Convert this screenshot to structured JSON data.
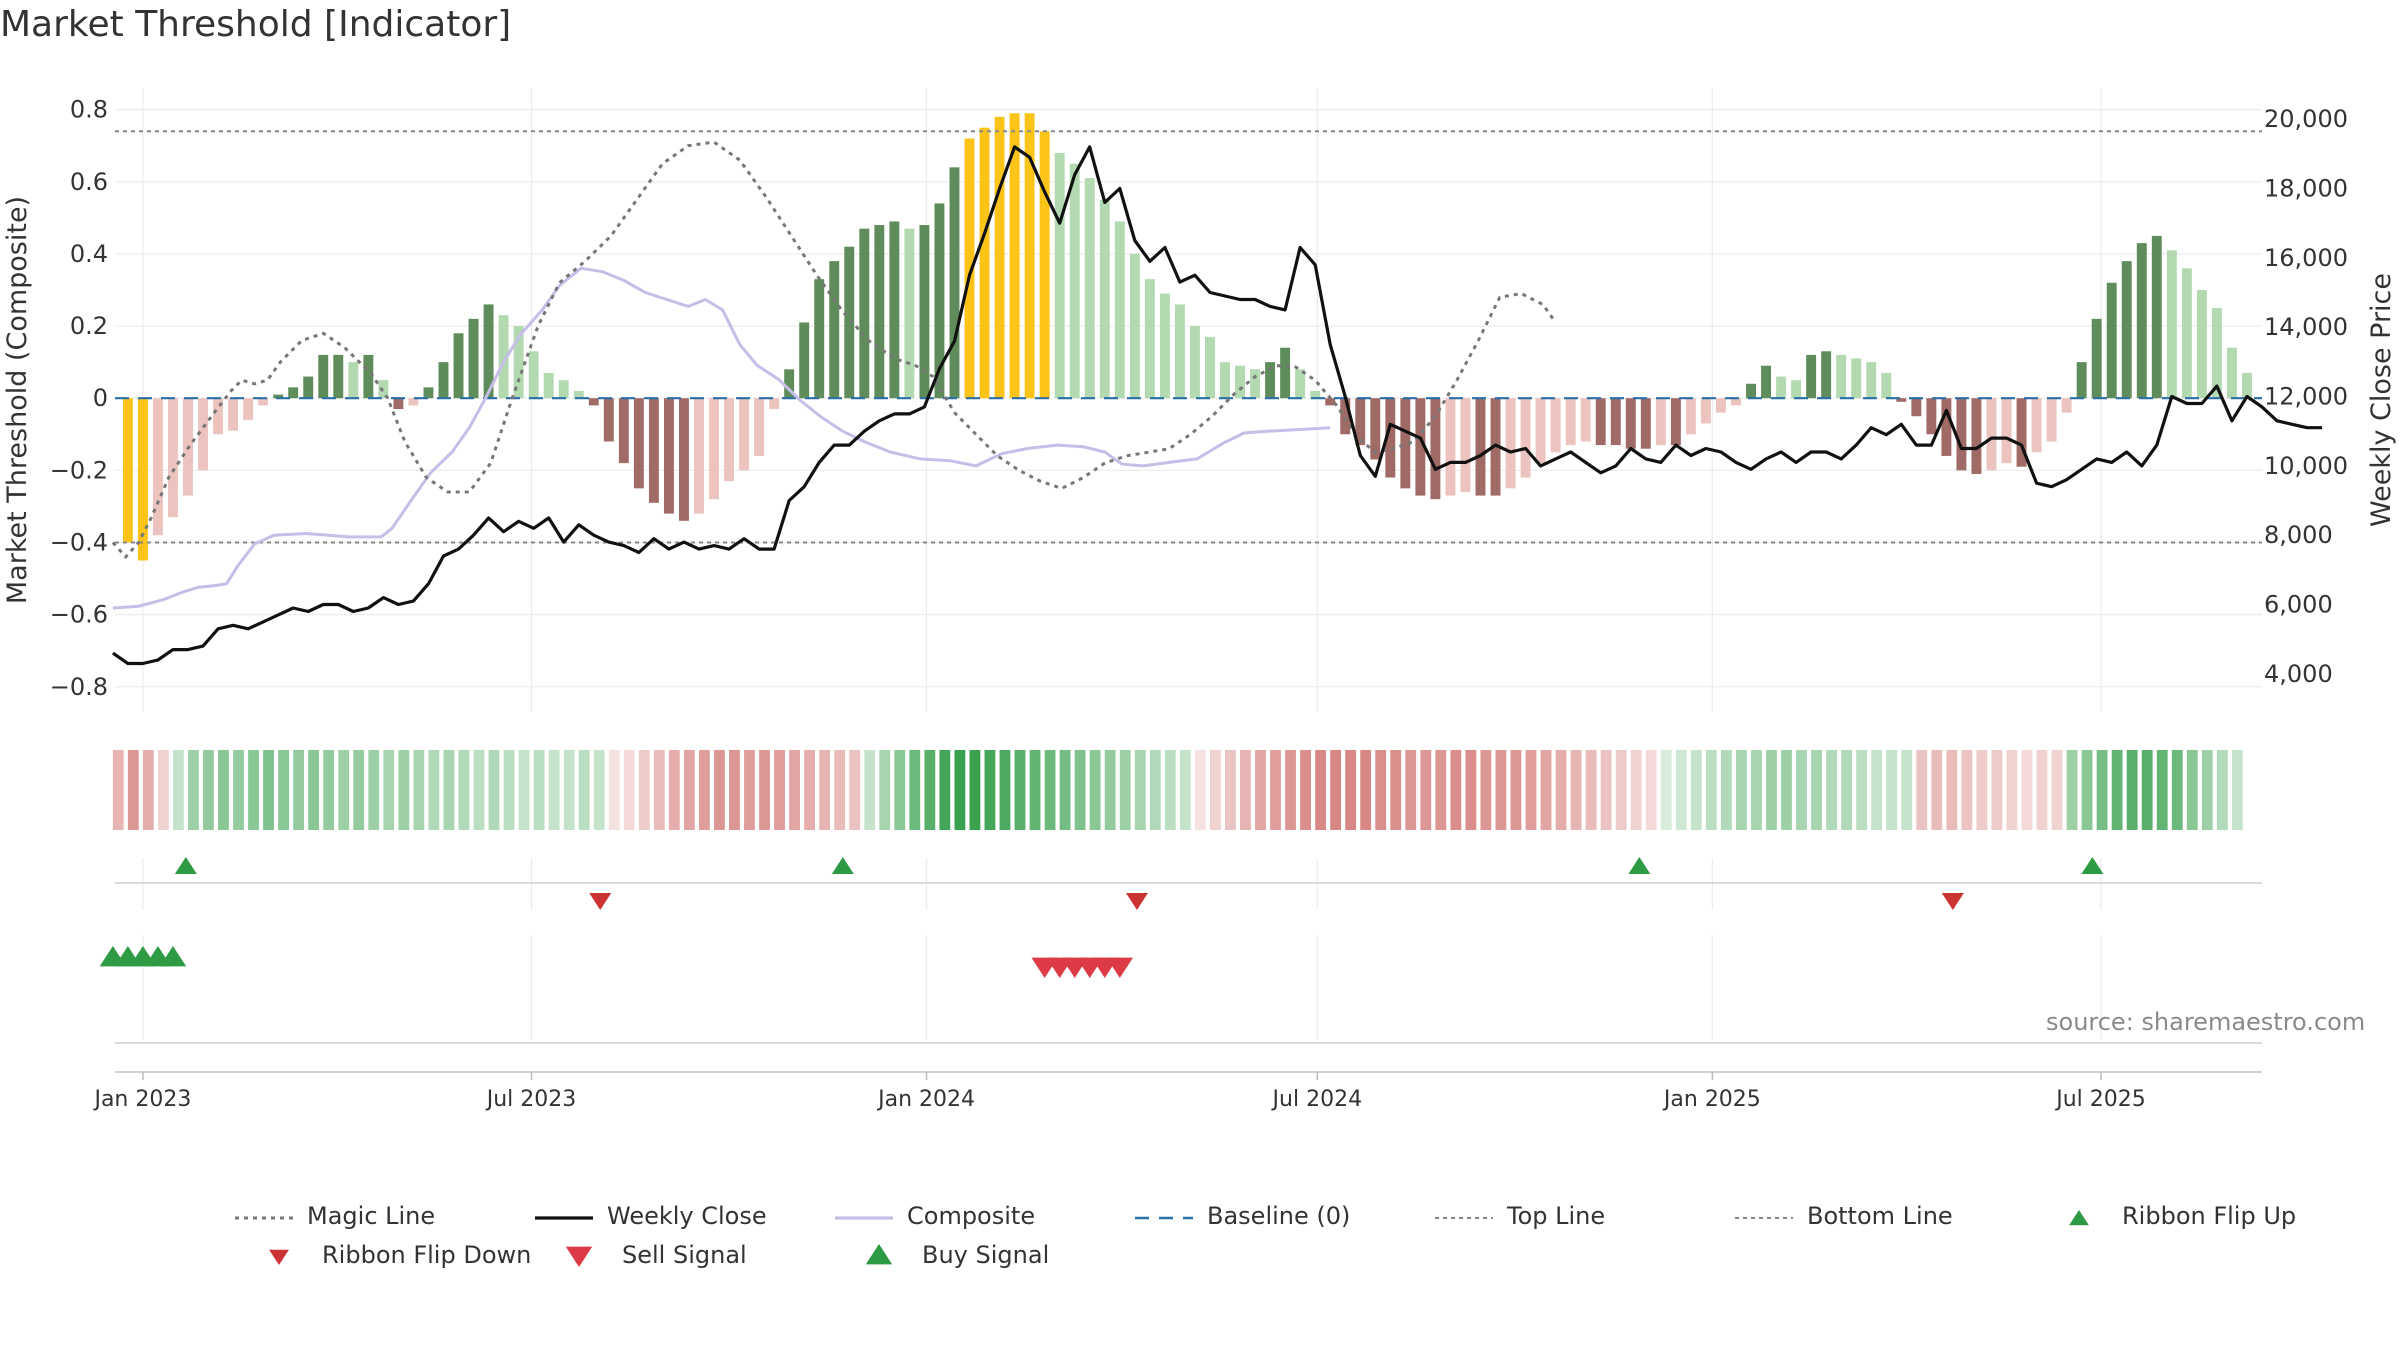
{
  "title": "Market Threshold [Indicator]",
  "source": "source: sharemaestro.com",
  "colors": {
    "bull_dark": "#5e8c5a",
    "bull_light": "#b2d9b0",
    "bear_dark": "#a06a66",
    "bear_light": "#ecc3bf",
    "extreme": "#fcc419",
    "weekly_close": "#111111",
    "composite": "#c6bde8",
    "magic": "#777777",
    "baseline": "#2b6fa8",
    "ribbon_green": "#3aa14f",
    "ribbon_red": "#cd6a66",
    "buy": "#2f9a44",
    "sell": "#dc3b45"
  },
  "chart_data": {
    "type": "bar",
    "title": "Market Threshold [Indicator]",
    "y_left_label": "Market Threshold (Composite)",
    "y_right_label": "Weekly Close Price",
    "y_left_ticks": [
      "0.8",
      "0.6",
      "0.4",
      "0.2",
      "0",
      "−0.2",
      "−0.4",
      "−0.6",
      "−0.8"
    ],
    "y_left_tick_values": [
      0.8,
      0.6,
      0.4,
      0.2,
      0,
      -0.2,
      -0.4,
      -0.6,
      -0.8
    ],
    "y_right_ticks": [
      "20,000",
      "18,000",
      "16,000",
      "14,000",
      "12,000",
      "10,000",
      "8,000",
      "6,000",
      "4,000"
    ],
    "y_right_tick_values": [
      20000,
      18000,
      16000,
      14000,
      12000,
      10000,
      8000,
      6000,
      4000
    ],
    "ylim_left": [
      -0.87,
      0.86
    ],
    "ylim_right": [
      2900,
      20900
    ],
    "x_ticks": [
      "Jan 2023",
      "Jul 2023",
      "Jan 2024",
      "Jul 2024",
      "Jan 2025",
      "Jul 2025"
    ],
    "x_tick_dates": [
      "2023-01-01",
      "2023-07-01",
      "2024-01-01",
      "2024-07-01",
      "2025-01-01",
      "2025-07-01"
    ],
    "x_range": [
      "2022-12-19",
      "2025-09-14"
    ],
    "top_line": 0.74,
    "bottom_line": -0.4,
    "grid": true,
    "legend_position": "bottom",
    "composite_start": "2022-12-25",
    "composite_step_days": 7,
    "composite": [
      -0.4,
      -0.45,
      -0.38,
      -0.33,
      -0.27,
      -0.2,
      -0.1,
      -0.09,
      -0.06,
      -0.02,
      0.01,
      0.03,
      0.06,
      0.12,
      0.12,
      0.1,
      0.12,
      0.05,
      -0.03,
      -0.02,
      0.03,
      0.1,
      0.18,
      0.22,
      0.26,
      0.23,
      0.2,
      0.13,
      0.07,
      0.05,
      0.02,
      -0.02,
      -0.12,
      -0.18,
      -0.25,
      -0.29,
      -0.32,
      -0.34,
      -0.32,
      -0.28,
      -0.23,
      -0.2,
      -0.16,
      -0.03,
      0.08,
      0.21,
      0.33,
      0.38,
      0.42,
      0.47,
      0.48,
      0.49,
      0.47,
      0.48,
      0.54,
      0.64,
      0.72,
      0.75,
      0.78,
      0.79,
      0.79,
      0.74,
      0.68,
      0.65,
      0.61,
      0.55,
      0.49,
      0.4,
      0.33,
      0.29,
      0.26,
      0.2,
      0.17,
      0.1,
      0.09,
      0.08,
      0.1,
      0.14,
      0.08,
      0.02,
      -0.02,
      -0.1,
      -0.13,
      -0.17,
      -0.22,
      -0.25,
      -0.27,
      -0.28,
      -0.27,
      -0.26,
      -0.27,
      -0.27,
      -0.25,
      -0.22,
      -0.18,
      -0.15,
      -0.13,
      -0.12,
      -0.13,
      -0.13,
      -0.14,
      -0.14,
      -0.13,
      -0.13,
      -0.1,
      -0.07,
      -0.04,
      -0.02,
      0.04,
      0.09,
      0.06,
      0.05,
      0.12,
      0.13,
      0.12,
      0.11,
      0.1,
      0.07,
      -0.01,
      -0.05,
      -0.1,
      -0.16,
      -0.2,
      -0.21,
      -0.2,
      -0.18,
      -0.19,
      -0.15,
      -0.12,
      -0.04,
      0.1,
      0.22,
      0.32,
      0.38,
      0.43,
      0.45,
      0.41,
      0.36,
      0.3,
      0.25,
      0.14,
      0.07
    ],
    "weekly_close": [
      4600,
      4300,
      4300,
      4400,
      4700,
      4700,
      4800,
      5300,
      5400,
      5300,
      5500,
      5700,
      5900,
      5800,
      6000,
      6000,
      5800,
      5900,
      6200,
      6000,
      6100,
      6600,
      7400,
      7600,
      8000,
      8500,
      8100,
      8400,
      8200,
      8500,
      7800,
      8300,
      8000,
      7800,
      7700,
      7500,
      7900,
      7600,
      7800,
      7600,
      7700,
      7600,
      7900,
      7600,
      7600,
      9000,
      9400,
      10100,
      10600,
      10600,
      11000,
      11300,
      11500,
      11500,
      11700,
      12800,
      13600,
      15500,
      16700,
      18000,
      19200,
      18900,
      17900,
      17000,
      18400,
      19200,
      17600,
      18000,
      16500,
      15900,
      16300,
      15300,
      15500,
      15000,
      14900,
      14800,
      14800,
      14600,
      14500,
      16300,
      15800,
      13500,
      12000,
      10300,
      9700,
      11200,
      11000,
      10800,
      9900,
      10100,
      10100,
      10300,
      10600,
      10400,
      10500,
      10000,
      10200,
      10400,
      10100,
      9800,
      10000,
      10500,
      10200,
      10100,
      10600,
      10300,
      10500,
      10400,
      10100,
      9900,
      10200,
      10400,
      10100,
      10400,
      10400,
      10200,
      10600,
      11100,
      10900,
      11200,
      10600,
      10600,
      11600,
      10500,
      10500,
      10800,
      10800,
      10600,
      9500,
      9400,
      9600,
      9900,
      10200,
      10100,
      10400,
      10000,
      10600,
      12000,
      11800,
      11800,
      12300,
      11300,
      12000,
      11700,
      11300,
      11200,
      11100,
      11100
    ],
    "composite_line_start": "2022-12-18",
    "composite_line": [
      [
        0,
        5900
      ],
      [
        12,
        5950
      ],
      [
        24,
        6150
      ],
      [
        32,
        6350
      ],
      [
        40,
        6500
      ],
      [
        48,
        6550
      ],
      [
        53,
        6600
      ],
      [
        58,
        7100
      ],
      [
        66,
        7750
      ],
      [
        75,
        8000
      ],
      [
        90,
        8050
      ],
      [
        110,
        7950
      ],
      [
        125,
        7950
      ],
      [
        130,
        8200
      ],
      [
        140,
        9100
      ],
      [
        148,
        9800
      ],
      [
        158,
        10400
      ],
      [
        166,
        11100
      ],
      [
        174,
        12000
      ],
      [
        182,
        13000
      ],
      [
        190,
        13800
      ],
      [
        200,
        14500
      ],
      [
        208,
        15200
      ],
      [
        218,
        15700
      ],
      [
        228,
        15600
      ],
      [
        238,
        15350
      ],
      [
        248,
        15000
      ],
      [
        258,
        14800
      ],
      [
        268,
        14600
      ],
      [
        276,
        14800
      ],
      [
        284,
        14500
      ],
      [
        292,
        13500
      ],
      [
        300,
        12900
      ],
      [
        310,
        12500
      ],
      [
        320,
        11900
      ],
      [
        330,
        11400
      ],
      [
        340,
        11000
      ],
      [
        350,
        10700
      ],
      [
        362,
        10400
      ],
      [
        376,
        10200
      ],
      [
        390,
        10150
      ],
      [
        402,
        10000
      ],
      [
        414,
        10350
      ],
      [
        426,
        10500
      ],
      [
        440,
        10600
      ],
      [
        452,
        10550
      ],
      [
        462,
        10400
      ],
      [
        470,
        10050
      ],
      [
        480,
        10000
      ],
      [
        492,
        10100
      ],
      [
        505,
        10200
      ],
      [
        517,
        10650
      ],
      [
        527,
        10950
      ],
      [
        538,
        11000
      ],
      [
        553,
        11050
      ],
      [
        567,
        11100
      ]
    ],
    "magic_line": [
      [
        0,
        -0.4
      ],
      [
        6,
        -0.44
      ],
      [
        12,
        -0.4
      ],
      [
        18,
        -0.33
      ],
      [
        26,
        -0.22
      ],
      [
        36,
        -0.13
      ],
      [
        46,
        -0.05
      ],
      [
        55,
        0.02
      ],
      [
        60,
        0.05
      ],
      [
        66,
        0.04
      ],
      [
        72,
        0.05
      ],
      [
        78,
        0.1
      ],
      [
        88,
        0.16
      ],
      [
        98,
        0.18
      ],
      [
        108,
        0.14
      ],
      [
        120,
        0.07
      ],
      [
        128,
        0
      ],
      [
        136,
        -0.12
      ],
      [
        146,
        -0.22
      ],
      [
        156,
        -0.26
      ],
      [
        166,
        -0.26
      ],
      [
        176,
        -0.18
      ],
      [
        186,
        0
      ],
      [
        198,
        0.2
      ],
      [
        208,
        0.32
      ],
      [
        220,
        0.38
      ],
      [
        232,
        0.45
      ],
      [
        244,
        0.55
      ],
      [
        256,
        0.65
      ],
      [
        268,
        0.7
      ],
      [
        280,
        0.71
      ],
      [
        292,
        0.66
      ],
      [
        304,
        0.56
      ],
      [
        316,
        0.45
      ],
      [
        328,
        0.34
      ],
      [
        340,
        0.24
      ],
      [
        352,
        0.16
      ],
      [
        364,
        0.11
      ],
      [
        374,
        0.09
      ],
      [
        382,
        0.06
      ],
      [
        392,
        -0.04
      ],
      [
        402,
        -0.1
      ],
      [
        412,
        -0.16
      ],
      [
        422,
        -0.2
      ],
      [
        432,
        -0.23
      ],
      [
        442,
        -0.25
      ],
      [
        452,
        -0.22
      ],
      [
        462,
        -0.18
      ],
      [
        472,
        -0.16
      ],
      [
        482,
        -0.15
      ],
      [
        492,
        -0.14
      ],
      [
        502,
        -0.1
      ],
      [
        512,
        -0.05
      ],
      [
        522,
        0.01
      ],
      [
        532,
        0.06
      ],
      [
        542,
        0.09
      ],
      [
        550,
        0.09
      ],
      [
        560,
        0.05
      ],
      [
        570,
        -0.02
      ],
      [
        580,
        -0.11
      ],
      [
        588,
        -0.15
      ],
      [
        596,
        -0.14
      ],
      [
        606,
        -0.12
      ],
      [
        616,
        -0.05
      ],
      [
        626,
        0.05
      ],
      [
        636,
        0.16
      ],
      [
        646,
        0.28
      ],
      [
        656,
        0.29
      ],
      [
        666,
        0.26
      ],
      [
        672,
        0.21
      ]
    ],
    "ribbon": [
      -0.5,
      -0.7,
      -0.55,
      -0.3,
      0.3,
      0.5,
      0.55,
      0.6,
      0.55,
      0.6,
      0.65,
      0.6,
      0.55,
      0.6,
      0.55,
      0.5,
      0.55,
      0.5,
      0.45,
      0.5,
      0.45,
      0.4,
      0.45,
      0.4,
      0.35,
      0.4,
      0.35,
      0.3,
      0.35,
      0.3,
      0.3,
      0.35,
      0.3,
      -0.2,
      -0.25,
      -0.35,
      -0.45,
      -0.55,
      -0.6,
      -0.65,
      -0.7,
      -0.7,
      -0.65,
      -0.7,
      -0.65,
      -0.6,
      -0.55,
      -0.5,
      -0.45,
      -0.4,
      0.3,
      0.45,
      0.6,
      0.75,
      0.85,
      0.95,
      1.0,
      1.0,
      0.95,
      0.9,
      0.85,
      0.8,
      0.75,
      0.7,
      0.65,
      0.6,
      0.55,
      0.5,
      0.45,
      0.4,
      0.35,
      0.3,
      -0.2,
      -0.3,
      -0.4,
      -0.5,
      -0.6,
      -0.65,
      -0.7,
      -0.75,
      -0.8,
      -0.8,
      -0.8,
      -0.8,
      -0.75,
      -0.75,
      -0.7,
      -0.7,
      -0.7,
      -0.75,
      -0.75,
      -0.7,
      -0.7,
      -0.7,
      -0.65,
      -0.6,
      -0.55,
      -0.5,
      -0.45,
      -0.4,
      -0.35,
      -0.3,
      -0.25,
      0.2,
      0.25,
      0.3,
      0.35,
      0.4,
      0.45,
      0.45,
      0.5,
      0.5,
      0.45,
      0.45,
      0.4,
      0.4,
      0.35,
      0.3,
      0.3,
      0.3,
      -0.4,
      -0.45,
      -0.45,
      -0.4,
      -0.35,
      -0.35,
      -0.3,
      -0.25,
      -0.3,
      -0.3,
      0.5,
      0.6,
      0.7,
      0.8,
      0.85,
      0.85,
      0.8,
      0.75,
      0.6,
      0.5,
      0.4,
      0.3
    ],
    "ribbon_flip_up": [
      "2023-01-21",
      "2023-11-23",
      "2024-11-28",
      "2025-06-27"
    ],
    "ribbon_flip_down": [
      "2023-08-02",
      "2024-04-08",
      "2025-04-23"
    ],
    "sell_signal": [
      "2024-02-25",
      "2024-03-03",
      "2024-03-10",
      "2024-03-17",
      "2024-03-24",
      "2024-03-31"
    ],
    "buy_signal": [
      "2022-12-18",
      "2022-12-25",
      "2023-01-01",
      "2023-01-08",
      "2023-01-15"
    ]
  },
  "legend": [
    {
      "id": "magic",
      "label": "Magic Line",
      "symbol": "dotted",
      "color": "#777777"
    },
    {
      "id": "close",
      "label": "Weekly Close",
      "symbol": "solid",
      "color": "#111111"
    },
    {
      "id": "composite",
      "label": "Composite",
      "symbol": "solid",
      "color": "#c6bde8"
    },
    {
      "id": "baseline",
      "label": "Baseline (0)",
      "symbol": "dashed",
      "color": "#2b6fa8"
    },
    {
      "id": "top",
      "label": "Top Line",
      "symbol": "dotted-thin",
      "color": "#888888"
    },
    {
      "id": "bottom",
      "label": "Bottom Line",
      "symbol": "dotted-thin",
      "color": "#888888"
    },
    {
      "id": "flipup",
      "label": "Ribbon Flip Up",
      "symbol": "tri-up",
      "color": "#2f9a44"
    },
    {
      "id": "flipdown",
      "label": "Ribbon Flip Down",
      "symbol": "tri-down",
      "color": "#cc3333"
    },
    {
      "id": "sell",
      "label": "Sell Signal",
      "symbol": "tri-down-big",
      "color": "#dc3b45"
    },
    {
      "id": "buy",
      "label": "Buy Signal",
      "symbol": "tri-up-big",
      "color": "#2f9a44"
    }
  ]
}
